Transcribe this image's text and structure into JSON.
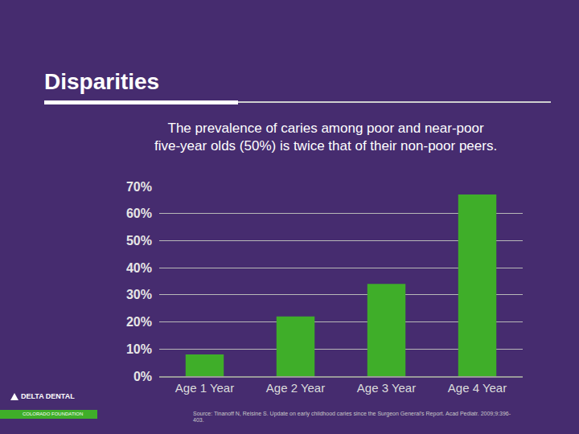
{
  "chart_data": {
    "type": "bar",
    "title": "Disparities",
    "subtitle": [
      "The prevalence of caries among poor and near-poor",
      "five-year olds (50%) is twice that of their non-poor peers."
    ],
    "categories": [
      "Age 1 Year",
      "Age 2 Year",
      "Age 3 Year",
      "Age 4 Year"
    ],
    "values": [
      8,
      22,
      34,
      67
    ],
    "color": "#3fae29",
    "ylim": [
      0,
      70
    ],
    "yticks": [
      {
        "value": 0,
        "label": "0%"
      },
      {
        "value": 10,
        "label": "10%"
      },
      {
        "value": 20,
        "label": "20%"
      },
      {
        "value": 30,
        "label": "30%"
      },
      {
        "value": 40,
        "label": "40%"
      },
      {
        "value": 50,
        "label": "50%"
      },
      {
        "value": 60,
        "label": "60%"
      },
      {
        "value": 70,
        "label": "70%"
      }
    ],
    "grid": true,
    "source": "Source: Tinanoff N, Reisine S. Update on early childhood caries since the Surgeon General's Report. Acad Pediatr. 2009;9:396-403.",
    "logo": [
      "DELTA DENTAL",
      "COLORADO FOUNDATION"
    ]
  }
}
